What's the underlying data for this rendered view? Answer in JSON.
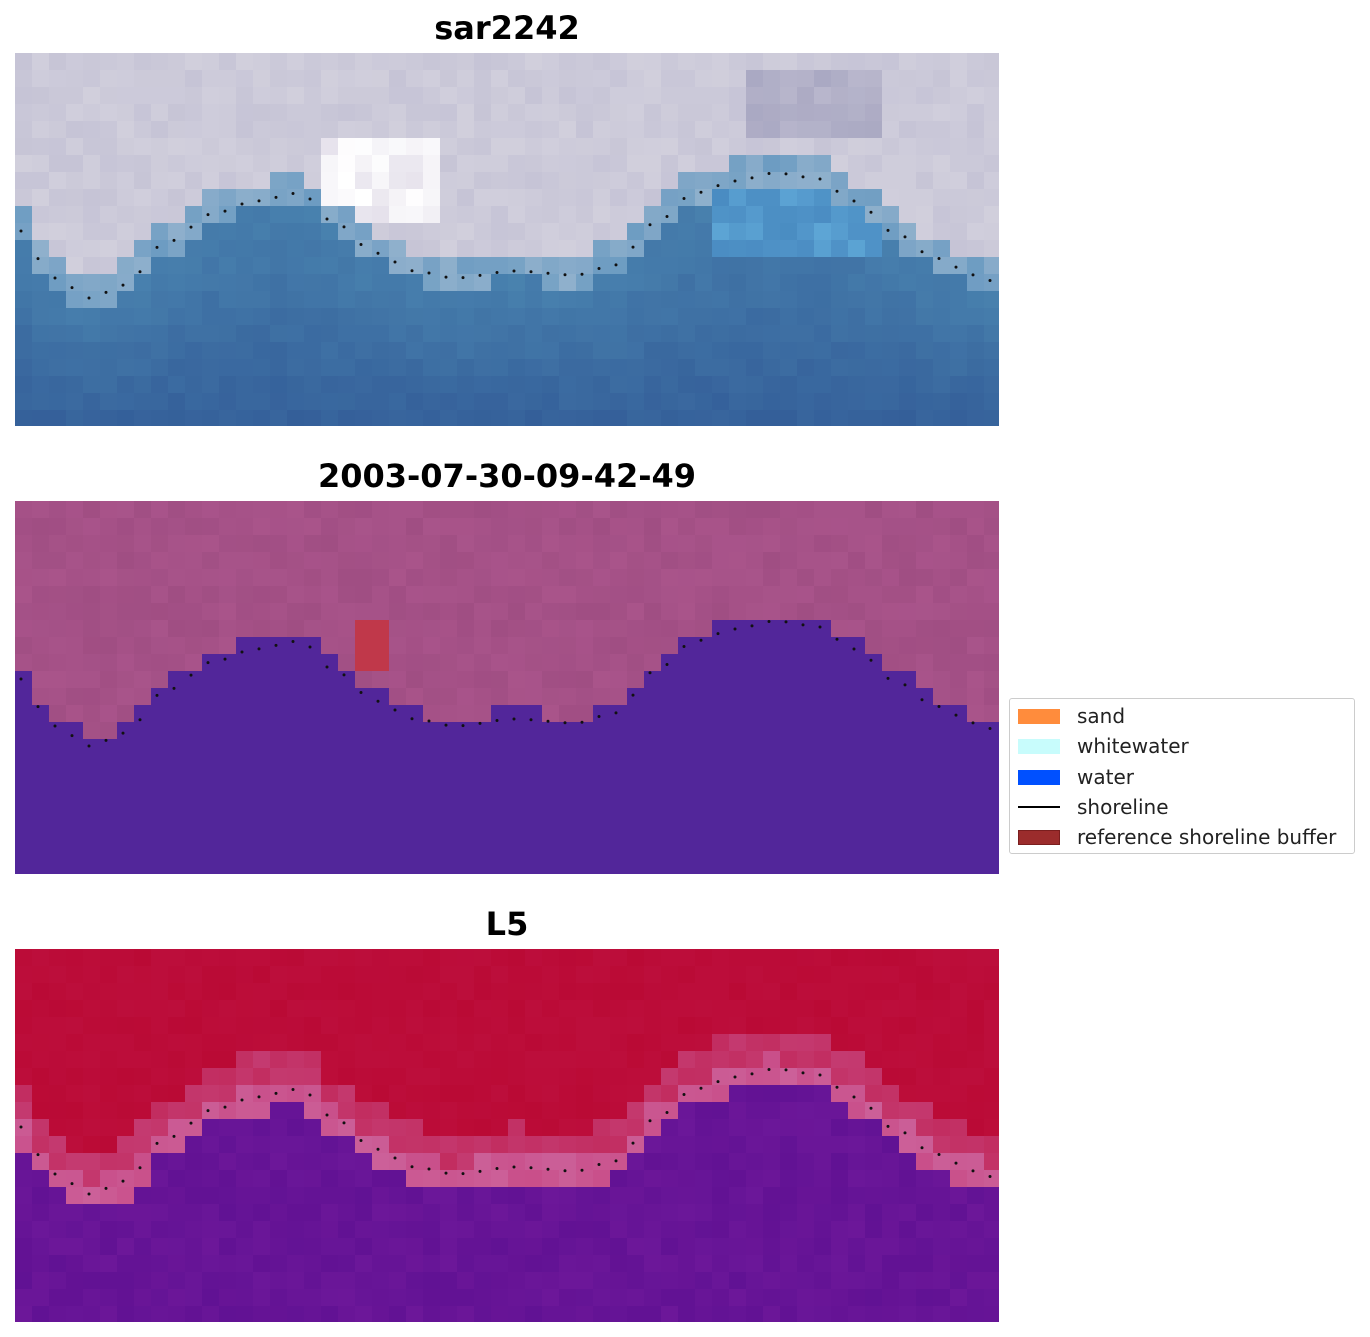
{
  "panels": [
    {
      "title": "sar2242",
      "style": "satellite"
    },
    {
      "title": "2003-07-30-09-42-49",
      "style": "classified"
    },
    {
      "title": "L5",
      "style": "probability"
    }
  ],
  "legend": {
    "items": [
      {
        "label": "sand",
        "color": "#ff8c3c",
        "kind": "patch"
      },
      {
        "label": "whitewater",
        "color": "#c8fcfc",
        "kind": "patch"
      },
      {
        "label": "water",
        "color": "#0050ff",
        "kind": "patch"
      },
      {
        "label": "shoreline",
        "color": "#000000",
        "kind": "line"
      },
      {
        "label": "reference shoreline buffer",
        "color": "#9b2c2c",
        "edge": "#7a1e1e",
        "kind": "patch"
      }
    ]
  },
  "colors": {
    "sar_sky": "#c6c4d6",
    "sar_land": "#d4d2de",
    "sar_water_top": "#4a84b0",
    "sar_water_bottom": "#335d98",
    "class_land": "#a04e83",
    "class_water": "#52269a",
    "class_buffer": "#c0384a",
    "prob_land": "#ba0a35",
    "prob_mid": "#c94f8a",
    "prob_water": "#6c1799",
    "shoreline_dots": "#111111"
  }
}
